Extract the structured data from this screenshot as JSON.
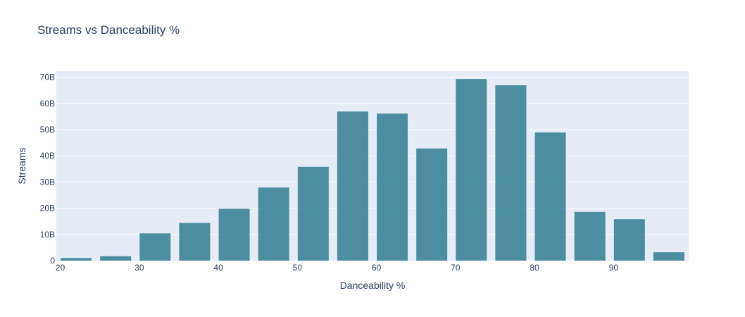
{
  "chart_data": {
    "type": "bar",
    "title": "Streams vs Danceability %",
    "xlabel": "Danceability %",
    "ylabel": "Streams",
    "x": [
      22,
      27,
      32,
      37,
      42,
      47,
      52,
      57,
      62,
      67,
      72,
      77,
      82,
      87,
      92,
      97
    ],
    "values": [
      1.0,
      1.7,
      10.4,
      14.4,
      19.8,
      27.9,
      35.8,
      56.9,
      56.1,
      42.8,
      69.3,
      66.9,
      48.9,
      18.6,
      15.8,
      3.2
    ],
    "value_unit": "B",
    "xlim": [
      19.5,
      99.5
    ],
    "ylim": [
      0,
      72.3
    ],
    "x_ticks": [
      20,
      30,
      40,
      50,
      60,
      70,
      80,
      90
    ],
    "x_tick_labels": [
      "20",
      "30",
      "40",
      "50",
      "60",
      "70",
      "80",
      "90"
    ],
    "y_ticks": [
      0,
      10,
      20,
      30,
      40,
      50,
      60,
      70
    ],
    "y_tick_labels": [
      "0",
      "10B",
      "20B",
      "30B",
      "40B",
      "50B",
      "60B",
      "70B"
    ],
    "grid": true,
    "legend": "none",
    "colors": {
      "bar": "#3b8399",
      "plot_bg": "#e5ecf6",
      "grid": "#ffffff",
      "text": "#2a3f5f"
    }
  }
}
